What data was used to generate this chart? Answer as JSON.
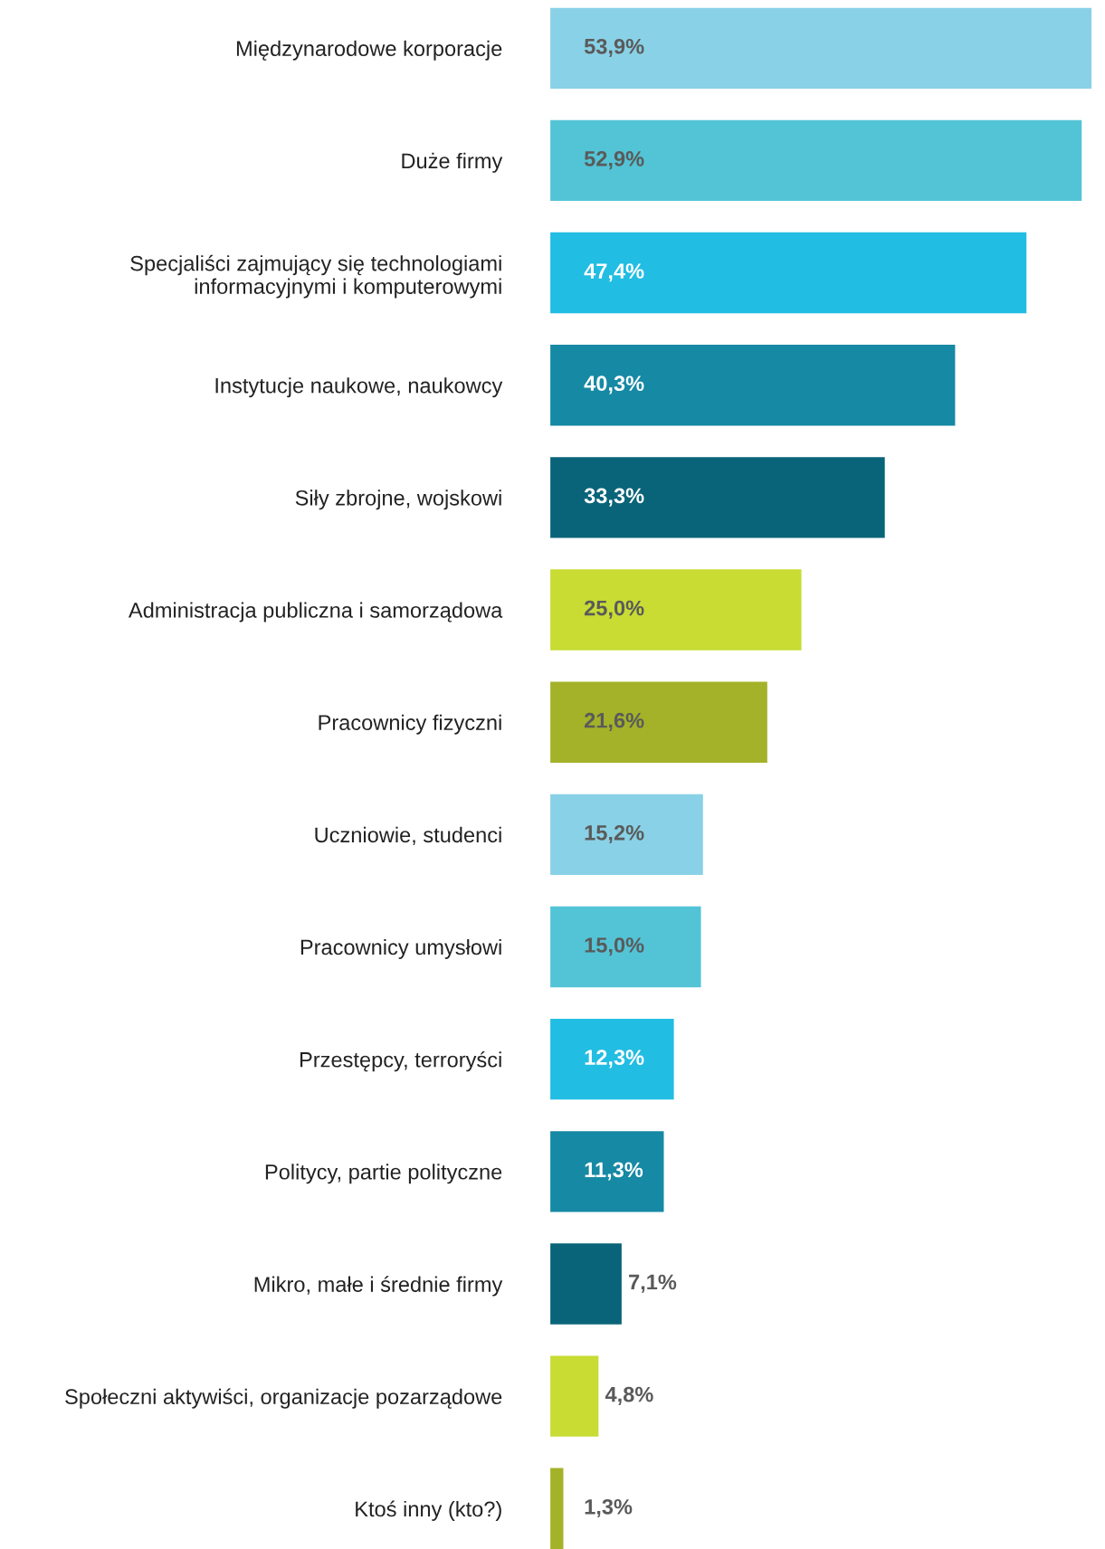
{
  "chart_data": {
    "type": "bar",
    "orientation": "horizontal",
    "categories": [
      "Międzynarodowe korporacje",
      "Duże firmy",
      "Specjaliści zajmujący się technologiami\ninformacyjnymi i komputerowymi",
      "Instytucje naukowe, naukowcy",
      "Siły zbrojne, wojskowi",
      "Administracja publiczna i samorządowa",
      "Pracownicy fizyczni",
      "Uczniowie, studenci",
      "Pracownicy umysłowi",
      "Przestępcy, terroryści",
      "Politycy, partie polityczne",
      "Mikro, małe i średnie firmy",
      "Społeczni aktywiści, organizacje pozarządowe",
      "Ktoś inny (kto?)"
    ],
    "values": [
      53.9,
      52.9,
      47.4,
      40.3,
      33.3,
      25.0,
      21.6,
      15.2,
      15.0,
      12.3,
      11.3,
      7.1,
      4.8,
      1.3
    ],
    "value_labels": [
      "53,9%",
      "52,9%",
      "47,4%",
      "40,3%",
      "33,3%",
      "25,0%",
      "21,6%",
      "15,2%",
      "15,0%",
      "12,3%",
      "11,3%",
      "7,1%",
      "4,8%",
      "1,3%"
    ],
    "colors": [
      "#89d1e6",
      "#53c4d6",
      "#22bde2",
      "#1689a4",
      "#0a6479",
      "#c8dc34",
      "#a3b228",
      "#89d1e6",
      "#53c4d6",
      "#22bde2",
      "#1689a4",
      "#0a6479",
      "#c8dc34",
      "#a3b228"
    ],
    "grid": false,
    "legend": false,
    "tick_labels": "y"
  }
}
